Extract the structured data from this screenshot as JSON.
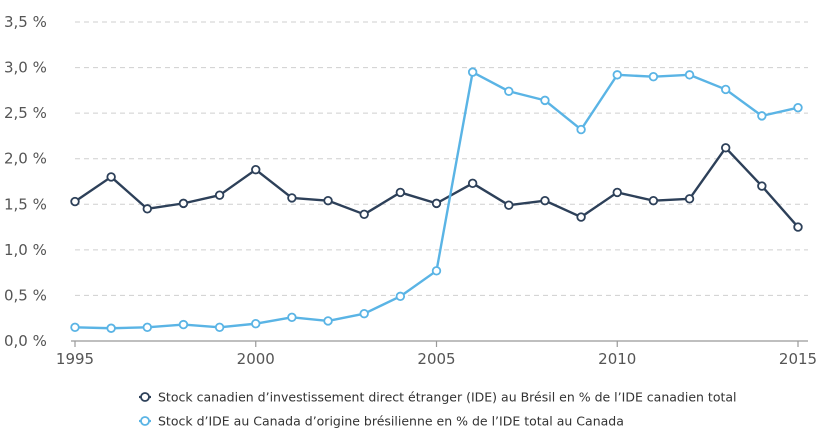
{
  "chart_data": {
    "type": "line",
    "x": [
      1995,
      1996,
      1997,
      1998,
      1999,
      2000,
      2001,
      2002,
      2003,
      2004,
      2005,
      2006,
      2007,
      2008,
      2009,
      2010,
      2011,
      2012,
      2013,
      2014,
      2015
    ],
    "xlim": [
      1995,
      2015
    ],
    "ylim": [
      0,
      3.5
    ],
    "x_ticks": [
      {
        "value": 1995,
        "label": "1995"
      },
      {
        "value": 2000,
        "label": "2000"
      },
      {
        "value": 2005,
        "label": "2005"
      },
      {
        "value": 2010,
        "label": "2010"
      },
      {
        "value": 2015,
        "label": "2015"
      }
    ],
    "y_ticks": [
      {
        "value": 0,
        "label": "0,0 %"
      },
      {
        "value": 0.5,
        "label": "0,5 %"
      },
      {
        "value": 1.0,
        "label": "1,0 %"
      },
      {
        "value": 1.5,
        "label": "1,5 %"
      },
      {
        "value": 2.0,
        "label": "2,0 %"
      },
      {
        "value": 2.5,
        "label": "2,5 %"
      },
      {
        "value": 3.0,
        "label": "3,0 %"
      },
      {
        "value": 3.5,
        "label": "3,5 %"
      }
    ],
    "grid": true,
    "legend_position": "bottom",
    "series": [
      {
        "name": "Stock canadien d’investissement direct étranger (IDE) au Brésil en % de l’IDE canadien total",
        "color": "#2d4059",
        "values": [
          1.53,
          1.8,
          1.45,
          1.51,
          1.6,
          1.88,
          1.57,
          1.54,
          1.39,
          1.63,
          1.51,
          1.73,
          1.49,
          1.54,
          1.36,
          1.63,
          1.54,
          1.56,
          2.12,
          1.7,
          1.25
        ]
      },
      {
        "name": "Stock d’IDE au Canada d’origine brésilienne en % de l’IDE total au Canada",
        "color": "#5ab4e5",
        "values": [
          0.15,
          0.14,
          0.15,
          0.18,
          0.15,
          0.19,
          0.26,
          0.22,
          0.3,
          0.49,
          0.77,
          2.95,
          2.74,
          2.64,
          2.32,
          2.92,
          2.9,
          2.92,
          2.76,
          2.47,
          2.56
        ]
      }
    ]
  }
}
